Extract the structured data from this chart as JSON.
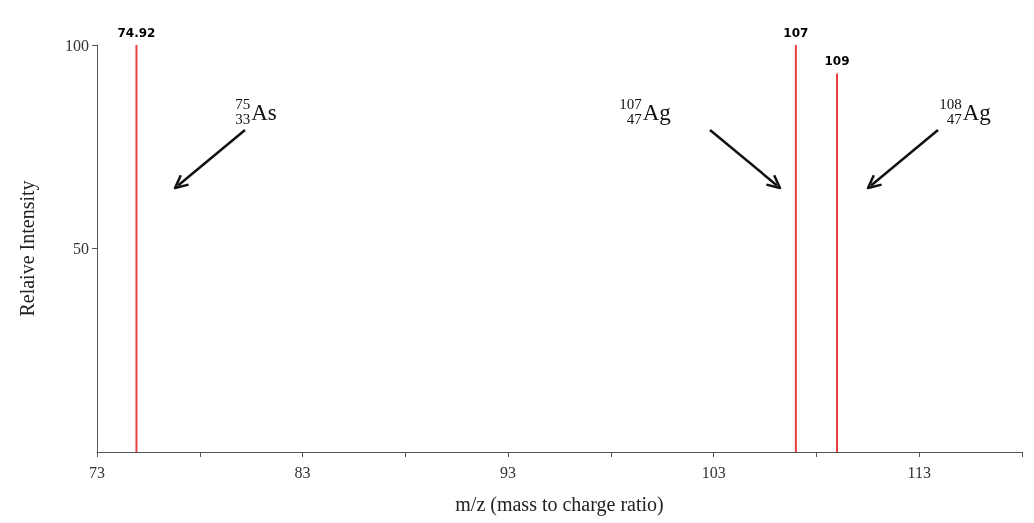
{
  "chart_data": {
    "type": "bar",
    "xlabel": "m/z (mass to charge ratio)",
    "ylabel": "Relaive Intensity",
    "x": [
      74.92,
      107,
      109
    ],
    "series": [
      {
        "color": "#e8403f",
        "values": [
          100,
          100,
          93
        ]
      }
    ],
    "xlim": [
      73,
      118
    ],
    "xticks": [
      73,
      {
        "value": 78,
        "label": null
      },
      83,
      {
        "value": 88,
        "label": null
      },
      93,
      {
        "value": 98,
        "label": null
      },
      103,
      {
        "value": 108,
        "label": null
      },
      113,
      {
        "value": 118,
        "label": null
      }
    ],
    "ylim": [
      0,
      100
    ],
    "yticks": [
      50,
      100
    ],
    "grid": false,
    "annotations": [
      {
        "text": "74.92",
        "x": 74.92,
        "y": 100
      },
      {
        "text": "107",
        "x": 107,
        "y": 100
      },
      {
        "text": "109",
        "x": 109,
        "y": 93
      },
      "$^{75}$$_{33}$As",
      "$^{107}$$_{47}$Ag",
      "$^{108}$$_{47}$Ag"
    ]
  }
}
